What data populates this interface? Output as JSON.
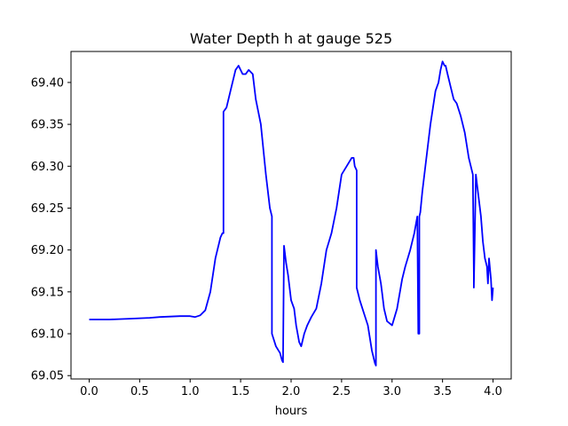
{
  "chart_data": {
    "type": "line",
    "title": "Water Depth h at gauge 525",
    "xlabel": "hours",
    "ylabel": "",
    "xlim": [
      -0.18,
      4.18
    ],
    "ylim": [
      69.046,
      69.437
    ],
    "grid": false,
    "xticks": [
      0.0,
      0.5,
      1.0,
      1.5,
      2.0,
      2.5,
      3.0,
      3.5,
      4.0
    ],
    "xtick_labels": [
      "0.0",
      "0.5",
      "1.0",
      "1.5",
      "2.0",
      "2.5",
      "3.0",
      "3.5",
      "4.0"
    ],
    "yticks": [
      69.05,
      69.1,
      69.15,
      69.2,
      69.25,
      69.3,
      69.35,
      69.4
    ],
    "ytick_labels": [
      "69.05",
      "69.10",
      "69.15",
      "69.20",
      "69.25",
      "69.30",
      "69.35",
      "69.40"
    ],
    "colors": {
      "line": "#0000ff",
      "axes": "#000000",
      "background": "#ffffff"
    },
    "series": [
      {
        "x": [
          0.0,
          0.2,
          0.4,
          0.6,
          0.7,
          0.9,
          1.0,
          1.05,
          1.1,
          1.15,
          1.2,
          1.25,
          1.3,
          1.32,
          1.33,
          1.33,
          1.36,
          1.4,
          1.45,
          1.48,
          1.5,
          1.52,
          1.55,
          1.58,
          1.62,
          1.65,
          1.7,
          1.75,
          1.79,
          1.81,
          1.81,
          1.85,
          1.89,
          1.91,
          1.92,
          1.93,
          1.95,
          1.97,
          2.0,
          2.03,
          2.05,
          2.08,
          2.1,
          2.13,
          2.16,
          2.2,
          2.25,
          2.3,
          2.35,
          2.4,
          2.45,
          2.5,
          2.55,
          2.6,
          2.62,
          2.63,
          2.65,
          2.65,
          2.68,
          2.72,
          2.76,
          2.8,
          2.83,
          2.84,
          2.84,
          2.86,
          2.89,
          2.9,
          2.92,
          2.95,
          3.0,
          3.05,
          3.1,
          3.13,
          3.18,
          3.22,
          3.25,
          3.26,
          3.27,
          3.27,
          3.28,
          3.3,
          3.33,
          3.38,
          3.43,
          3.46,
          3.48,
          3.5,
          3.52,
          3.53,
          3.55,
          3.58,
          3.61,
          3.64,
          3.68,
          3.72,
          3.76,
          3.8,
          3.81,
          3.81,
          3.83,
          3.84,
          3.86,
          3.88,
          3.9,
          3.92,
          3.94,
          3.95,
          3.96,
          3.98,
          3.99,
          4.0
        ],
        "y": [
          69.117,
          69.117,
          69.118,
          69.119,
          69.12,
          69.121,
          69.121,
          69.12,
          69.122,
          69.128,
          69.15,
          69.19,
          69.215,
          69.22,
          69.22,
          69.365,
          69.37,
          69.39,
          69.415,
          69.42,
          69.415,
          69.41,
          69.41,
          69.415,
          69.41,
          69.38,
          69.35,
          69.29,
          69.25,
          69.24,
          69.1,
          69.085,
          69.077,
          69.068,
          69.066,
          69.205,
          69.185,
          69.17,
          69.14,
          69.13,
          69.11,
          69.09,
          69.085,
          69.1,
          69.11,
          69.12,
          69.13,
          69.16,
          69.2,
          69.22,
          69.25,
          69.29,
          69.3,
          69.31,
          69.31,
          69.3,
          69.295,
          69.155,
          69.14,
          69.125,
          69.11,
          69.08,
          69.065,
          69.062,
          69.2,
          69.18,
          69.16,
          69.15,
          69.13,
          69.115,
          69.11,
          69.13,
          69.165,
          69.18,
          69.2,
          69.22,
          69.24,
          69.1,
          69.1,
          69.24,
          69.245,
          69.27,
          69.3,
          69.35,
          69.39,
          69.4,
          69.415,
          69.425,
          69.42,
          69.42,
          69.41,
          69.395,
          69.38,
          69.375,
          69.36,
          69.34,
          69.31,
          69.29,
          69.17,
          69.155,
          69.29,
          69.28,
          69.26,
          69.24,
          69.21,
          69.19,
          69.18,
          69.16,
          69.19,
          69.165,
          69.14,
          69.155
        ]
      }
    ]
  }
}
